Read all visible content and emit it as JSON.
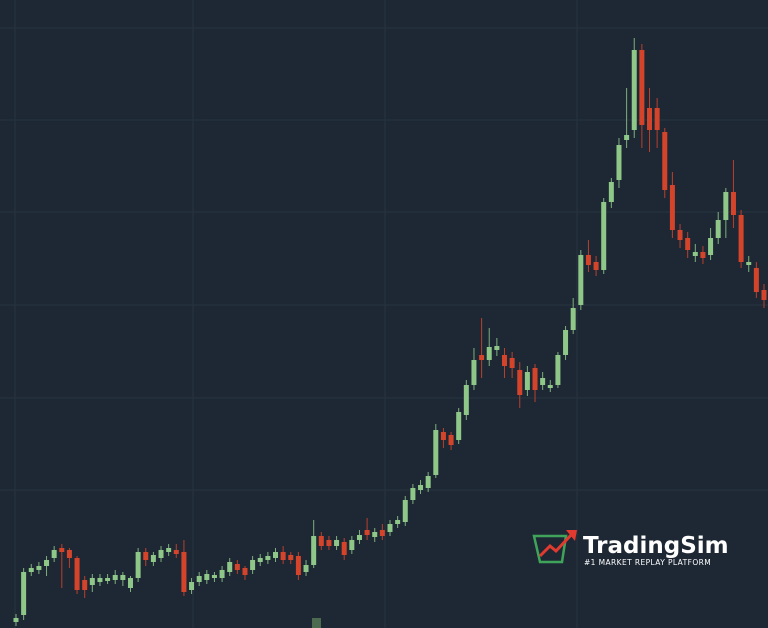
{
  "chart_data": {
    "type": "candlestick",
    "up_color": "#8ec788",
    "down_color": "#d4442b",
    "ylim": [
      0,
      628
    ],
    "open": [
      6,
      13,
      56,
      58,
      62,
      70,
      80,
      78,
      70,
      48,
      43,
      46,
      47,
      48,
      48,
      40,
      50,
      76,
      66,
      70,
      76,
      78,
      76,
      38,
      46,
      48,
      50,
      50,
      56,
      64,
      60,
      58,
      66,
      68,
      70,
      76,
      73,
      72,
      56,
      63,
      92,
      88,
      82,
      86,
      78,
      88,
      98,
      91,
      98,
      96,
      104,
      106,
      128,
      138,
      140,
      153,
      196,
      193,
      188,
      213,
      243,
      273,
      268,
      278,
      273,
      270,
      258,
      238,
      260,
      243,
      240,
      243,
      273,
      298,
      323,
      373,
      366,
      358,
      426,
      448,
      488,
      498,
      578,
      520,
      520,
      496,
      443,
      398,
      390,
      372,
      376,
      373,
      390,
      408,
      436,
      413,
      363,
      360,
      338
    ],
    "high": [
      14,
      60,
      64,
      66,
      72,
      82,
      84,
      80,
      72,
      52,
      54,
      54,
      54,
      58,
      56,
      52,
      80,
      80,
      76,
      82,
      84,
      84,
      88,
      50,
      56,
      58,
      56,
      62,
      70,
      68,
      62,
      72,
      74,
      76,
      80,
      82,
      76,
      76,
      68,
      108,
      96,
      92,
      92,
      90,
      92,
      98,
      110,
      100,
      104,
      108,
      112,
      132,
      144,
      148,
      156,
      204,
      200,
      196,
      220,
      248,
      280,
      310,
      300,
      290,
      280,
      276,
      266,
      262,
      264,
      256,
      248,
      276,
      302,
      330,
      378,
      388,
      372,
      430,
      450,
      490,
      540,
      590,
      584,
      540,
      530,
      500,
      456,
      404,
      396,
      384,
      382,
      400,
      416,
      440,
      468,
      418,
      372,
      366,
      344
    ],
    "low": [
      2,
      8,
      52,
      54,
      52,
      66,
      40,
      60,
      34,
      30,
      36,
      42,
      44,
      44,
      42,
      36,
      46,
      62,
      62,
      66,
      72,
      70,
      32,
      34,
      42,
      44,
      46,
      46,
      52,
      54,
      48,
      54,
      62,
      64,
      66,
      64,
      64,
      48,
      52,
      60,
      78,
      78,
      78,
      68,
      74,
      84,
      88,
      86,
      88,
      92,
      100,
      102,
      124,
      134,
      136,
      150,
      180,
      178,
      184,
      208,
      238,
      250,
      262,
      272,
      250,
      250,
      220,
      232,
      226,
      238,
      236,
      240,
      268,
      294,
      318,
      356,
      352,
      354,
      420,
      440,
      480,
      490,
      480,
      476,
      480,
      430,
      390,
      380,
      370,
      366,
      364,
      368,
      384,
      390,
      400,
      360,
      356,
      330,
      320
    ],
    "close": [
      10,
      56,
      60,
      62,
      68,
      78,
      76,
      70,
      38,
      38,
      50,
      50,
      50,
      53,
      53,
      50,
      76,
      68,
      73,
      78,
      80,
      74,
      36,
      46,
      52,
      54,
      53,
      58,
      66,
      58,
      53,
      68,
      70,
      72,
      76,
      68,
      68,
      53,
      63,
      92,
      82,
      82,
      88,
      73,
      88,
      93,
      93,
      96,
      92,
      104,
      108,
      128,
      140,
      143,
      152,
      198,
      188,
      183,
      216,
      243,
      268,
      268,
      281,
      282,
      262,
      260,
      233,
      256,
      238,
      250,
      243,
      273,
      298,
      320,
      373,
      363,
      358,
      426,
      446,
      483,
      493,
      578,
      503,
      498,
      498,
      438,
      398,
      388,
      378,
      376,
      370,
      390,
      408,
      436,
      413,
      366,
      366,
      336,
      328
    ]
  },
  "logo": {
    "name": "TradingSim",
    "tagline": "#1 MARKET REPLAY PLATFORM"
  }
}
